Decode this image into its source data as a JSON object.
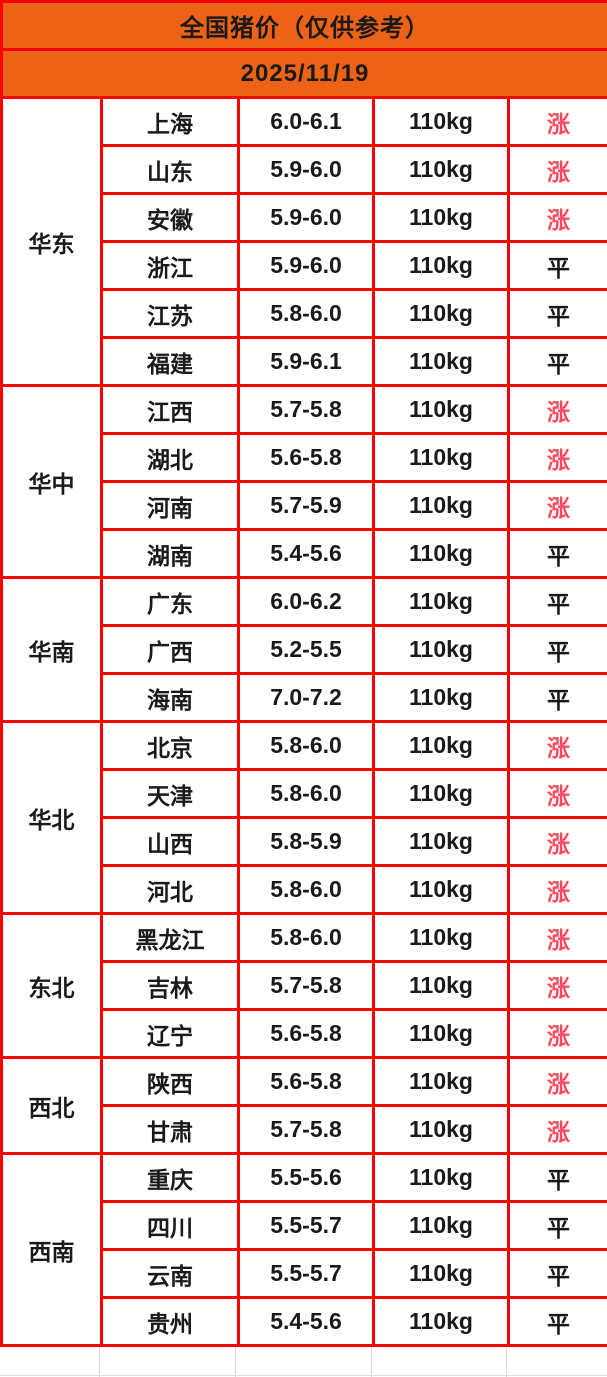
{
  "colors": {
    "page_bg": "#FFFFFF",
    "header_bg": "#EC6217",
    "border_red": "#FE0000",
    "text_dark": "#1A1A1A",
    "trend_rise_red": "#FA4B5C",
    "grid_gray": "#D9D9D9"
  },
  "chart_data": {
    "type": "table",
    "title": "全国猪价（仅供参考）",
    "date": "2025/11/19",
    "weight_standard": "110kg",
    "trend_values": {
      "rise": "涨",
      "flat": "平"
    },
    "regions": [
      {
        "name": "华东",
        "rows": [
          {
            "province": "上海",
            "price": "6.0-6.1",
            "weight": "110kg",
            "trend": "涨"
          },
          {
            "province": "山东",
            "price": "5.9-6.0",
            "weight": "110kg",
            "trend": "涨"
          },
          {
            "province": "安徽",
            "price": "5.9-6.0",
            "weight": "110kg",
            "trend": "涨"
          },
          {
            "province": "浙江",
            "price": "5.9-6.0",
            "weight": "110kg",
            "trend": "平"
          },
          {
            "province": "江苏",
            "price": "5.8-6.0",
            "weight": "110kg",
            "trend": "平"
          },
          {
            "province": "福建",
            "price": "5.9-6.1",
            "weight": "110kg",
            "trend": "平"
          }
        ]
      },
      {
        "name": "华中",
        "rows": [
          {
            "province": "江西",
            "price": "5.7-5.8",
            "weight": "110kg",
            "trend": "涨"
          },
          {
            "province": "湖北",
            "price": "5.6-5.8",
            "weight": "110kg",
            "trend": "涨"
          },
          {
            "province": "河南",
            "price": "5.7-5.9",
            "weight": "110kg",
            "trend": "涨"
          },
          {
            "province": "湖南",
            "price": "5.4-5.6",
            "weight": "110kg",
            "trend": "平"
          }
        ]
      },
      {
        "name": "华南",
        "rows": [
          {
            "province": "广东",
            "price": "6.0-6.2",
            "weight": "110kg",
            "trend": "平"
          },
          {
            "province": "广西",
            "price": "5.2-5.5",
            "weight": "110kg",
            "trend": "平"
          },
          {
            "province": "海南",
            "price": "7.0-7.2",
            "weight": "110kg",
            "trend": "平"
          }
        ]
      },
      {
        "name": "华北",
        "rows": [
          {
            "province": "北京",
            "price": "5.8-6.0",
            "weight": "110kg",
            "trend": "涨"
          },
          {
            "province": "天津",
            "price": "5.8-6.0",
            "weight": "110kg",
            "trend": "涨"
          },
          {
            "province": "山西",
            "price": "5.8-5.9",
            "weight": "110kg",
            "trend": "涨"
          },
          {
            "province": "河北",
            "price": "5.8-6.0",
            "weight": "110kg",
            "trend": "涨"
          }
        ]
      },
      {
        "name": "东北",
        "rows": [
          {
            "province": "黑龙江",
            "price": "5.8-6.0",
            "weight": "110kg",
            "trend": "涨"
          },
          {
            "province": "吉林",
            "price": "5.7-5.8",
            "weight": "110kg",
            "trend": "涨"
          },
          {
            "province": "辽宁",
            "price": "5.6-5.8",
            "weight": "110kg",
            "trend": "涨"
          }
        ]
      },
      {
        "name": "西北",
        "rows": [
          {
            "province": "陕西",
            "price": "5.6-5.8",
            "weight": "110kg",
            "trend": "涨"
          },
          {
            "province": "甘肃",
            "price": "5.7-5.8",
            "weight": "110kg",
            "trend": "涨"
          }
        ]
      },
      {
        "name": "西南",
        "rows": [
          {
            "province": "重庆",
            "price": "5.5-5.6",
            "weight": "110kg",
            "trend": "平"
          },
          {
            "province": "四川",
            "price": "5.5-5.7",
            "weight": "110kg",
            "trend": "平"
          },
          {
            "province": "云南",
            "price": "5.5-5.7",
            "weight": "110kg",
            "trend": "平"
          },
          {
            "province": "贵州",
            "price": "5.4-5.6",
            "weight": "110kg",
            "trend": "平"
          }
        ]
      }
    ]
  }
}
